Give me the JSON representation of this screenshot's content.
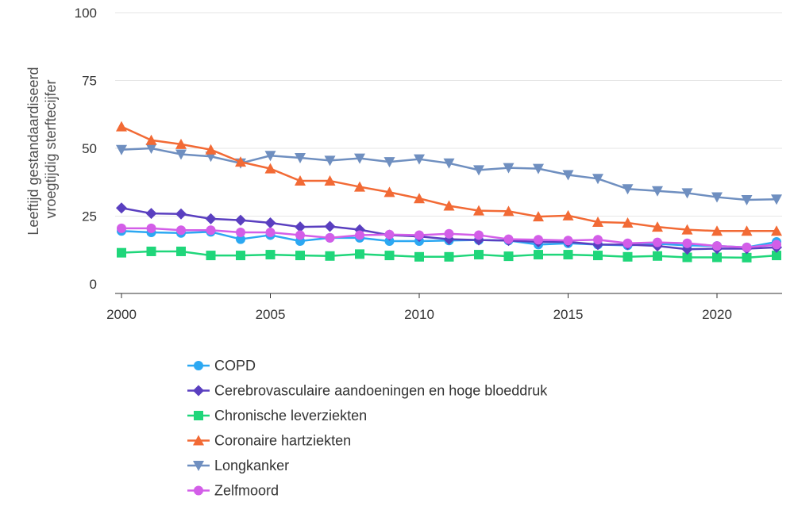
{
  "chart_data": {
    "type": "line",
    "title": "",
    "xlabel": "",
    "ylabel": [
      "Leeftijd gestandaardiseerd",
      "vroegtijdig sterftecijfer"
    ],
    "ylim": [
      0,
      100
    ],
    "yticks": [
      0,
      25,
      50,
      75,
      100
    ],
    "xlim": [
      2000,
      2022
    ],
    "xticks": [
      2000,
      2005,
      2010,
      2015,
      2020
    ],
    "grid": "horizontal",
    "legend_position": "bottom",
    "x": [
      2000,
      2001,
      2002,
      2003,
      2004,
      2005,
      2006,
      2007,
      2008,
      2009,
      2010,
      2011,
      2012,
      2013,
      2014,
      2015,
      2016,
      2017,
      2018,
      2019,
      2020,
      2021,
      2022
    ],
    "series": [
      {
        "name": "COPD",
        "color": "#2ca8f2",
        "marker": "circle",
        "values": [
          19.5,
          19.0,
          18.8,
          19.2,
          16.5,
          18.0,
          15.8,
          17.0,
          17.0,
          15.8,
          15.8,
          16.0,
          16.2,
          16.0,
          14.5,
          15.0,
          14.5,
          14.2,
          14.8,
          14.2,
          14.0,
          13.5,
          15.5
        ]
      },
      {
        "name": "Cerebrovasculaire aandoeningen en hoge bloeddruk",
        "color": "#5a3fc0",
        "marker": "diamond",
        "values": [
          28.0,
          26.0,
          25.8,
          24.0,
          23.5,
          22.5,
          21.0,
          21.2,
          20.0,
          18.0,
          17.5,
          16.5,
          16.2,
          16.0,
          15.5,
          15.5,
          14.5,
          14.5,
          14.0,
          12.8,
          13.0,
          13.0,
          13.5
        ]
      },
      {
        "name": "Chronische leverziekten",
        "color": "#1fd67a",
        "marker": "square",
        "values": [
          11.5,
          12.0,
          12.0,
          10.5,
          10.5,
          10.8,
          10.5,
          10.3,
          11.0,
          10.5,
          10.0,
          10.0,
          10.8,
          10.2,
          10.8,
          10.8,
          10.5,
          10.0,
          10.3,
          9.8,
          9.8,
          9.7,
          10.5
        ]
      },
      {
        "name": "Coronaire hartziekten",
        "color": "#f26a35",
        "marker": "triangle-up",
        "values": [
          58.0,
          53.0,
          51.5,
          49.5,
          45.0,
          42.5,
          38.0,
          38.0,
          35.8,
          33.8,
          31.5,
          28.8,
          27.0,
          26.8,
          24.8,
          25.2,
          22.8,
          22.5,
          21.0,
          20.0,
          19.5,
          19.5,
          19.5
        ]
      },
      {
        "name": "Longkanker",
        "color": "#6f8fc0",
        "marker": "triangle-down",
        "values": [
          49.5,
          50.0,
          47.8,
          47.0,
          44.5,
          47.3,
          46.5,
          45.5,
          46.3,
          45.0,
          46.0,
          44.5,
          42.0,
          42.8,
          42.5,
          40.2,
          38.8,
          35.0,
          34.3,
          33.5,
          32.0,
          31.0,
          31.2
        ]
      },
      {
        "name": "Zelfmoord",
        "color": "#d35ee8",
        "marker": "circle",
        "values": [
          20.5,
          20.5,
          19.8,
          19.8,
          19.0,
          19.0,
          18.0,
          17.0,
          18.0,
          18.2,
          18.0,
          18.5,
          18.0,
          16.5,
          16.3,
          16.0,
          16.3,
          15.0,
          15.3,
          15.0,
          14.0,
          13.5,
          14.5
        ]
      }
    ]
  }
}
